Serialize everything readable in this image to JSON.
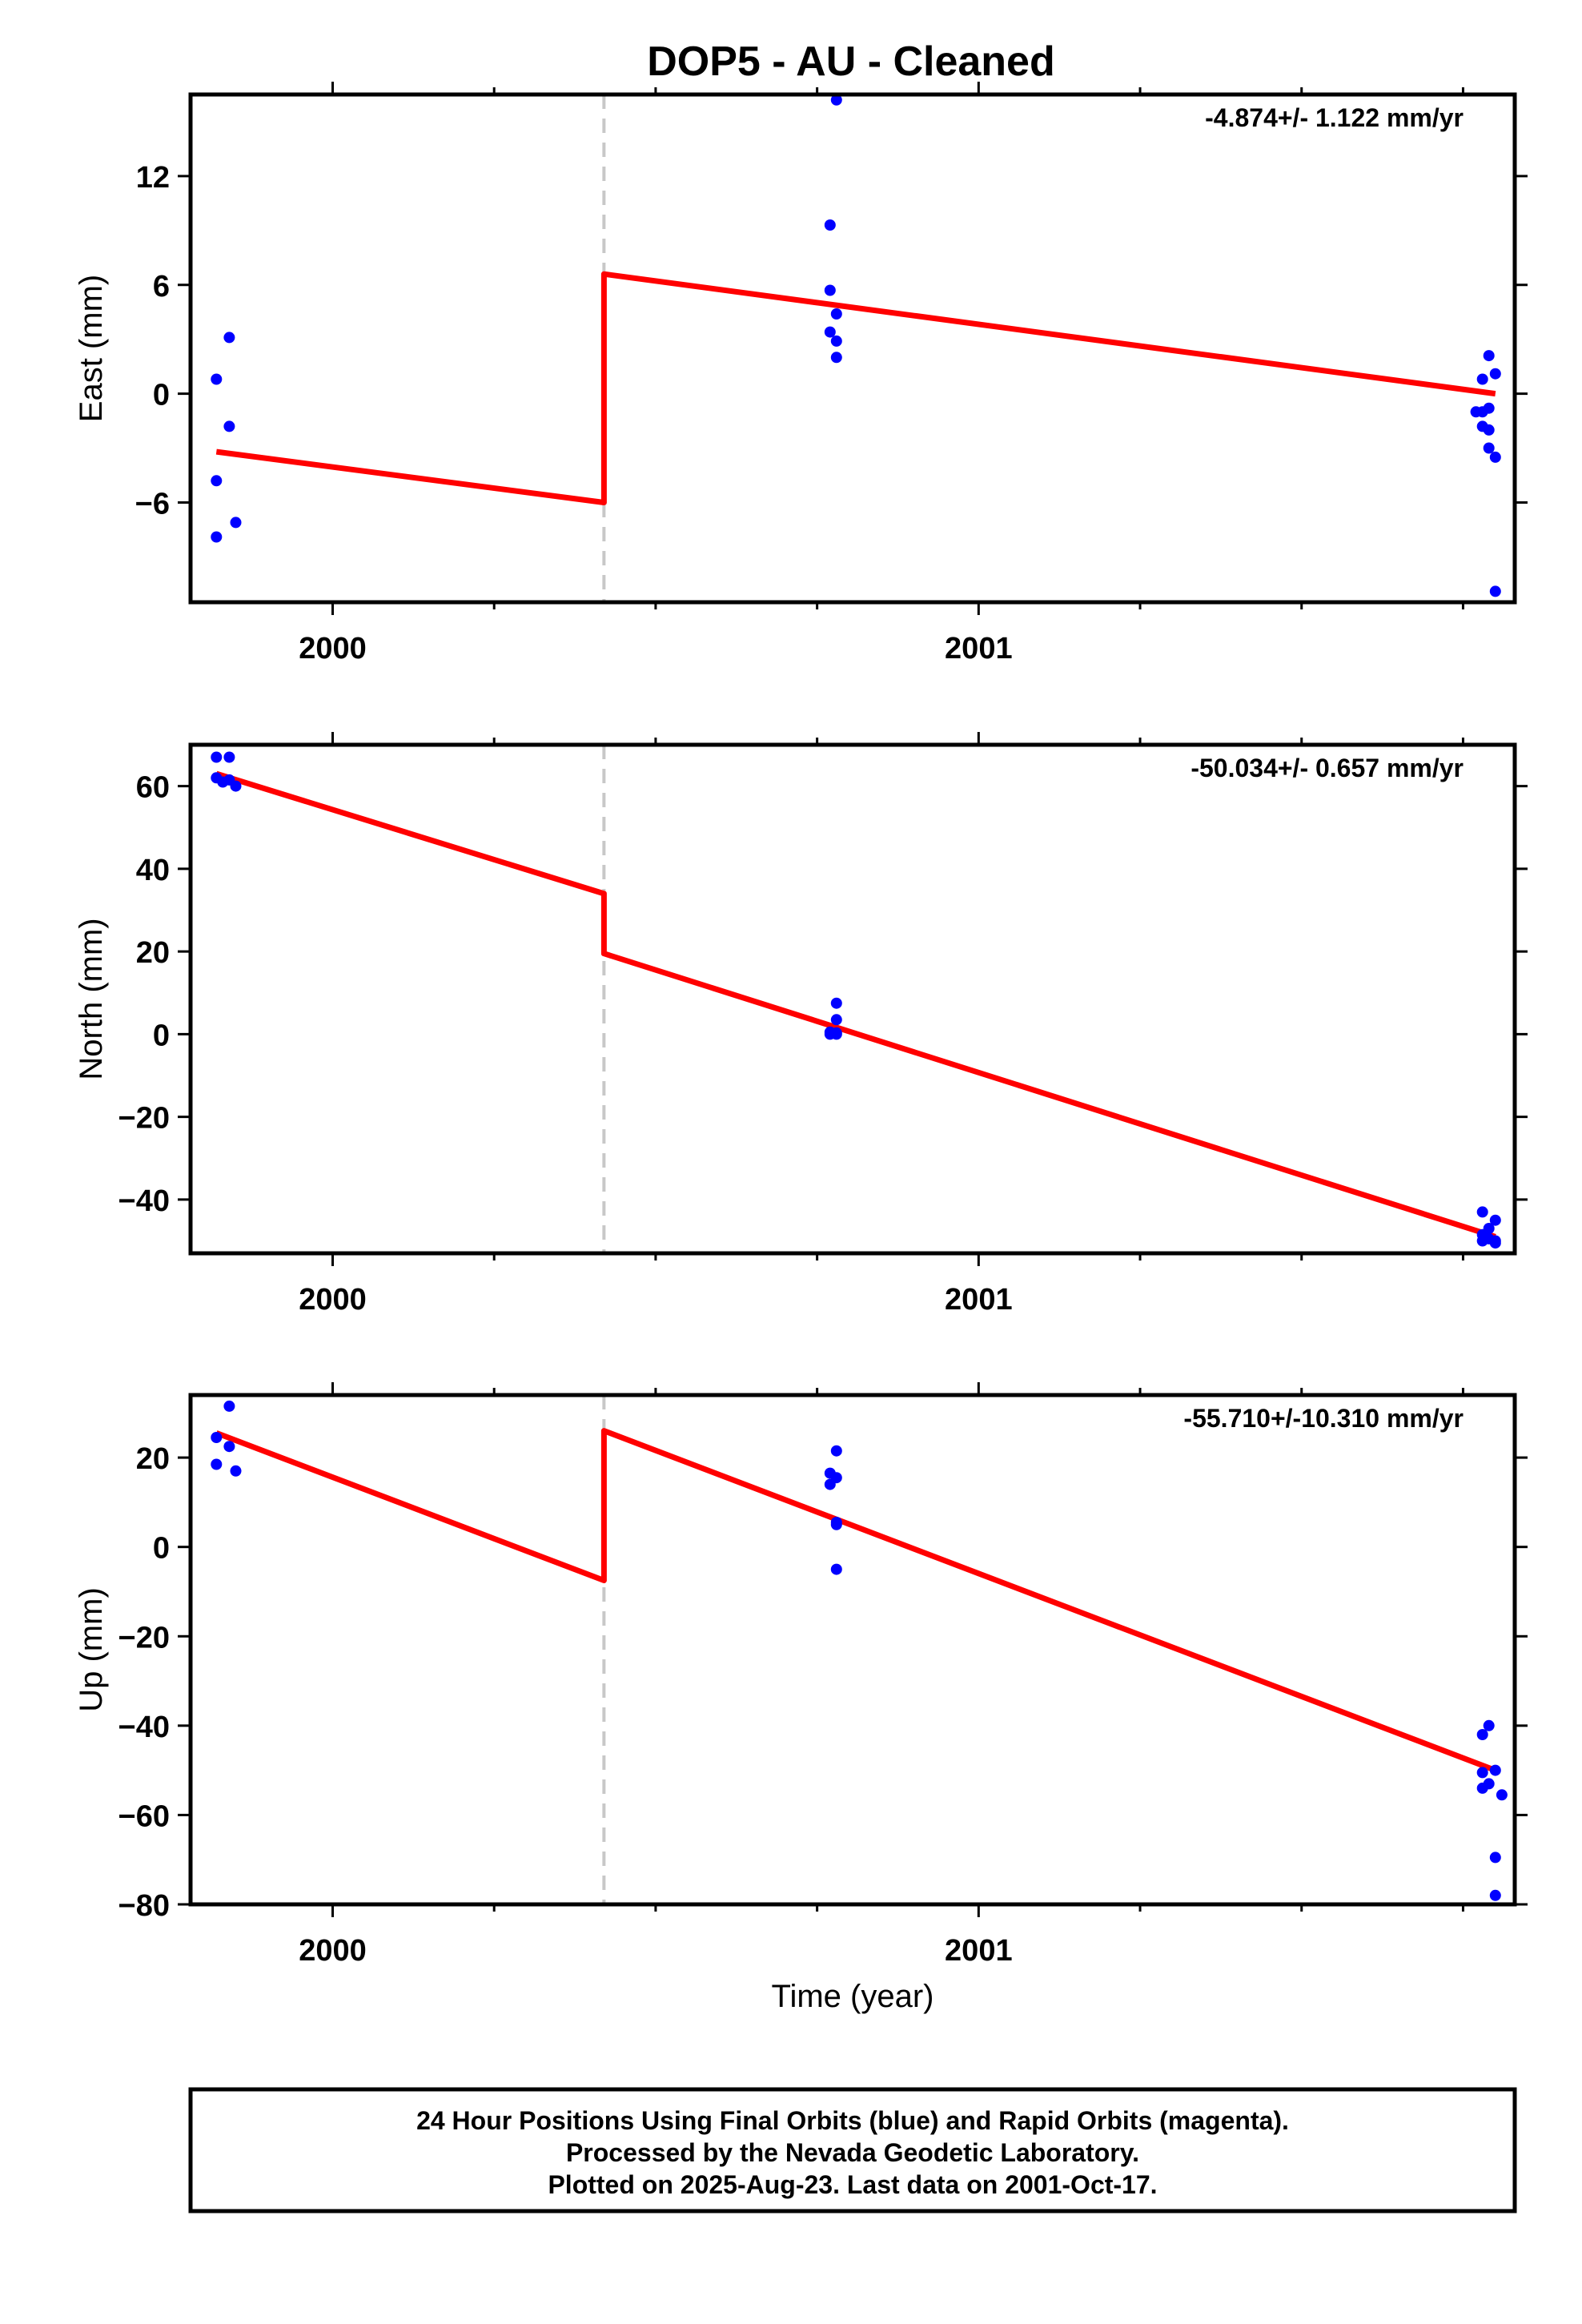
{
  "title": "DOP5  - AU - Cleaned",
  "colors": {
    "model": "#ff0000",
    "final_points": "#0000ff",
    "event_line": "#c8c8c8",
    "frame": "#000000"
  },
  "footer": {
    "line1": "24 Hour Positions Using Final Orbits (blue) and Rapid Orbits (magenta).",
    "line2": "Processed by the Nevada Geodetic Laboratory.",
    "line3": "Plotted on 2025-Aug-23. Last data on 2001-Oct-17."
  },
  "chart_data": [
    {
      "type": "scatter",
      "ylabel": "East (mm)",
      "xlabel": "",
      "rate_label": "-4.874+/- 1.122 mm/yr",
      "xlim": [
        1999.78,
        2001.83
      ],
      "ylim": [
        -11.5,
        16.5
      ],
      "yticks": [
        -6,
        0,
        6,
        12
      ],
      "xticks_major": [
        2000,
        2001
      ],
      "xticks_minor": [
        2000.25,
        2000.5,
        2000.75,
        2001.25,
        2001.5,
        2001.75
      ],
      "event_x": 2000.42,
      "series": [
        {
          "kind": "points",
          "points": [
            [
              1999.82,
              0.8
            ],
            [
              1999.84,
              3.1
            ],
            [
              1999.84,
              -1.8
            ],
            [
              1999.82,
              -4.8
            ],
            [
              1999.85,
              -7.1
            ],
            [
              1999.82,
              -7.9
            ],
            [
              2000.77,
              9.3
            ],
            [
              2000.78,
              16.2
            ],
            [
              2000.77,
              5.7
            ],
            [
              2000.78,
              4.4
            ],
            [
              2000.77,
              3.4
            ],
            [
              2000.78,
              2.9
            ],
            [
              2000.78,
              2.0
            ],
            [
              2001.79,
              2.1
            ],
            [
              2001.8,
              1.1
            ],
            [
              2001.78,
              0.8
            ],
            [
              2001.77,
              -1.0
            ],
            [
              2001.78,
              -1.0
            ],
            [
              2001.79,
              -0.8
            ],
            [
              2001.78,
              -1.8
            ],
            [
              2001.79,
              -2.0
            ],
            [
              2001.79,
              -3.0
            ],
            [
              2001.8,
              -3.5
            ],
            [
              2001.8,
              -10.9
            ]
          ]
        },
        {
          "kind": "model",
          "points": [
            [
              1999.82,
              -3.2
            ],
            [
              2000.42,
              -6.0
            ],
            [
              2000.42,
              6.6
            ],
            [
              2001.8,
              0.0
            ]
          ]
        }
      ]
    },
    {
      "type": "scatter",
      "ylabel": "North (mm)",
      "xlabel": "",
      "rate_label": "-50.034+/- 0.657 mm/yr",
      "xlim": [
        1999.78,
        2001.83
      ],
      "ylim": [
        -53,
        70
      ],
      "yticks": [
        -40,
        -20,
        0,
        20,
        40,
        60
      ],
      "xticks_major": [
        2000,
        2001
      ],
      "xticks_minor": [
        2000.25,
        2000.5,
        2000.75,
        2001.25,
        2001.5,
        2001.75
      ],
      "event_x": 2000.42,
      "series": [
        {
          "kind": "points",
          "points": [
            [
              1999.82,
              67.0
            ],
            [
              1999.84,
              67.0
            ],
            [
              1999.82,
              62.0
            ],
            [
              1999.83,
              61.0
            ],
            [
              1999.84,
              61.5
            ],
            [
              1999.85,
              60.0
            ],
            [
              2000.78,
              7.5
            ],
            [
              2000.78,
              3.5
            ],
            [
              2000.77,
              0.5
            ],
            [
              2000.78,
              0.3
            ],
            [
              2000.78,
              0.0
            ],
            [
              2000.77,
              0.0
            ],
            [
              2001.78,
              -43.0
            ],
            [
              2001.8,
              -45.0
            ],
            [
              2001.79,
              -47.0
            ],
            [
              2001.78,
              -48.5
            ],
            [
              2001.79,
              -49.5
            ],
            [
              2001.8,
              -50.0
            ],
            [
              2001.78,
              -50.0
            ],
            [
              2001.8,
              -50.5
            ]
          ]
        },
        {
          "kind": "model",
          "points": [
            [
              1999.82,
              63.0
            ],
            [
              2000.42,
              34.0
            ],
            [
              2000.42,
              19.5
            ],
            [
              2001.8,
              -49.0
            ]
          ]
        }
      ]
    },
    {
      "type": "scatter",
      "ylabel": "Up (mm)",
      "xlabel": "Time (year)",
      "rate_label": "-55.710+/-10.310 mm/yr",
      "xlim": [
        1999.78,
        2001.83
      ],
      "ylim": [
        -80,
        34
      ],
      "yticks": [
        -80,
        -60,
        -40,
        -20,
        0,
        20
      ],
      "xticks_major": [
        2000,
        2001
      ],
      "xticks_minor": [
        2000.25,
        2000.5,
        2000.75,
        2001.25,
        2001.5,
        2001.75
      ],
      "event_x": 2000.42,
      "series": [
        {
          "kind": "points",
          "points": [
            [
              1999.84,
              31.5
            ],
            [
              1999.82,
              24.5
            ],
            [
              1999.84,
              22.5
            ],
            [
              1999.82,
              18.5
            ],
            [
              1999.85,
              17.0
            ],
            [
              2000.78,
              21.5
            ],
            [
              2000.77,
              16.5
            ],
            [
              2000.78,
              15.5
            ],
            [
              2000.77,
              14.0
            ],
            [
              2000.78,
              5.5
            ],
            [
              2000.78,
              5.0
            ],
            [
              2000.78,
              -5.0
            ],
            [
              2001.79,
              -40.0
            ],
            [
              2001.78,
              -42.0
            ],
            [
              2001.8,
              -50.0
            ],
            [
              2001.78,
              -50.5
            ],
            [
              2001.79,
              -53.0
            ],
            [
              2001.78,
              -54.0
            ],
            [
              2001.81,
              -55.5
            ],
            [
              2001.8,
              -69.5
            ],
            [
              2001.8,
              -78.0
            ]
          ]
        },
        {
          "kind": "model",
          "points": [
            [
              1999.82,
              25.5
            ],
            [
              2000.42,
              -7.5
            ],
            [
              2000.42,
              26.0
            ],
            [
              2001.8,
              -50.0
            ]
          ]
        }
      ]
    }
  ]
}
